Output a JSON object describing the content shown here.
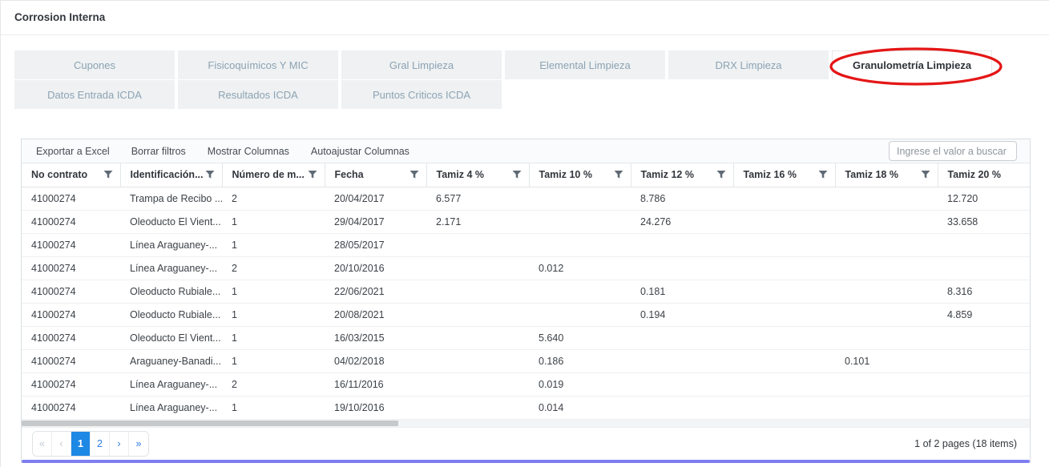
{
  "page": {
    "title": "Corrosion Interna"
  },
  "colors": {
    "accent_blue": "#1e88e5",
    "annotation_red": "#e41616",
    "bottom_bar": "#7e7ef2",
    "inactive_tab_bg": "#eff1f2",
    "inactive_tab_text": "#8ca3b3"
  },
  "tabs": {
    "active_label": "Granulometría Limpieza",
    "rows": [
      [
        {
          "label": "Cupones"
        },
        {
          "label": "Fisicoquímicos Y MIC"
        },
        {
          "label": "Gral Limpieza"
        },
        {
          "label": "Elemental Limpieza"
        },
        {
          "label": "DRX Limpieza"
        },
        {
          "label": "Granulometría Limpieza"
        }
      ],
      [
        {
          "label": "Datos Entrada ICDA"
        },
        {
          "label": "Resultados ICDA"
        },
        {
          "label": "Puntos Criticos ICDA"
        }
      ]
    ]
  },
  "toolbar": {
    "buttons": [
      "Exportar a Excel",
      "Borrar filtros",
      "Mostrar Columnas",
      "Autoajustar Columnas"
    ],
    "search_placeholder": "Ingrese el valor a buscar"
  },
  "table": {
    "columns": [
      {
        "label": "No contrato",
        "filter": true
      },
      {
        "label": "Identificación...",
        "filter": true
      },
      {
        "label": "Número de m...",
        "filter": true
      },
      {
        "label": "Fecha",
        "filter": true
      },
      {
        "label": "Tamiz 4 %",
        "filter": true
      },
      {
        "label": "Tamiz 10 %",
        "filter": true
      },
      {
        "label": "Tamiz 12 %",
        "filter": true
      },
      {
        "label": "Tamiz 16 %",
        "filter": true
      },
      {
        "label": "Tamiz 18 %",
        "filter": true
      },
      {
        "label": "Tamiz 20 %",
        "filter": false
      }
    ],
    "rows": [
      [
        "41000274",
        "Trampa de Recibo ...",
        "2",
        "20/04/2017",
        "6.577",
        "",
        "8.786",
        "",
        "",
        "12.720"
      ],
      [
        "41000274",
        "Oleoducto El Vient...",
        "1",
        "29/04/2017",
        "2.171",
        "",
        "24.276",
        "",
        "",
        "33.658"
      ],
      [
        "41000274",
        "Línea Araguaney-...",
        "1",
        "28/05/2017",
        "",
        "",
        "",
        "",
        "",
        ""
      ],
      [
        "41000274",
        "Línea Araguaney-...",
        "2",
        "20/10/2016",
        "",
        "0.012",
        "",
        "",
        "",
        ""
      ],
      [
        "41000274",
        "Oleoducto Rubiale...",
        "1",
        "22/06/2021",
        "",
        "",
        "0.181",
        "",
        "",
        "8.316"
      ],
      [
        "41000274",
        "Oleoducto Rubiale...",
        "1",
        "20/08/2021",
        "",
        "",
        "0.194",
        "",
        "",
        "4.859"
      ],
      [
        "41000274",
        "Oleoducto El Vient...",
        "1",
        "16/03/2015",
        "",
        "5.640",
        "",
        "",
        "",
        ""
      ],
      [
        "41000274",
        "Araguaney-Banadi...",
        "1",
        "04/02/2018",
        "",
        "0.186",
        "",
        "",
        "0.101",
        ""
      ],
      [
        "41000274",
        "Línea Araguaney-...",
        "2",
        "16/11/2016",
        "",
        "0.019",
        "",
        "",
        "",
        ""
      ],
      [
        "41000274",
        "Línea Araguaney-...",
        "1",
        "19/10/2016",
        "",
        "0.014",
        "",
        "",
        "",
        ""
      ]
    ]
  },
  "pagination": {
    "buttons": [
      {
        "label": "«",
        "state": "disabled"
      },
      {
        "label": "‹",
        "state": "disabled"
      },
      {
        "label": "1",
        "state": "active"
      },
      {
        "label": "2",
        "state": "normal"
      },
      {
        "label": "›",
        "state": "normal"
      },
      {
        "label": "»",
        "state": "normal"
      }
    ],
    "summary": "1 of 2 pages (18 items)"
  }
}
